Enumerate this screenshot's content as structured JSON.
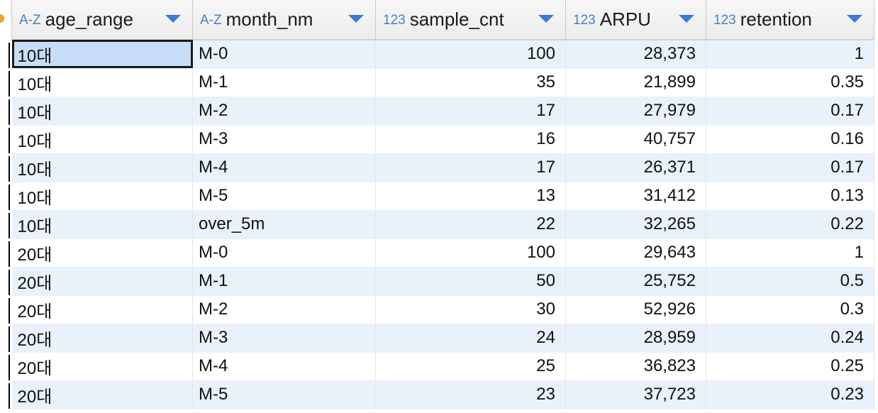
{
  "columns": [
    {
      "type_badge": "A-Z",
      "name": "age_range"
    },
    {
      "type_badge": "A-Z",
      "name": "month_nm"
    },
    {
      "type_badge": "123",
      "name": "sample_cnt"
    },
    {
      "type_badge": "123",
      "name": "ARPU"
    },
    {
      "type_badge": "123",
      "name": "retention"
    }
  ],
  "rows": [
    [
      "10대",
      "M-0",
      "100",
      "28,373",
      "1"
    ],
    [
      "10대",
      "M-1",
      "35",
      "21,899",
      "0.35"
    ],
    [
      "10대",
      "M-2",
      "17",
      "27,979",
      "0.17"
    ],
    [
      "10대",
      "M-3",
      "16",
      "40,757",
      "0.16"
    ],
    [
      "10대",
      "M-4",
      "17",
      "26,371",
      "0.17"
    ],
    [
      "10대",
      "M-5",
      "13",
      "31,412",
      "0.13"
    ],
    [
      "10대",
      "over_5m",
      "22",
      "32,265",
      "0.22"
    ],
    [
      "20대",
      "M-0",
      "100",
      "29,643",
      "1"
    ],
    [
      "20대",
      "M-1",
      "50",
      "25,752",
      "0.5"
    ],
    [
      "20대",
      "M-2",
      "30",
      "52,926",
      "0.3"
    ],
    [
      "20대",
      "M-3",
      "24",
      "28,959",
      "0.24"
    ],
    [
      "20대",
      "M-4",
      "25",
      "36,823",
      "0.25"
    ],
    [
      "20대",
      "M-5",
      "23",
      "37,723",
      "0.23"
    ]
  ],
  "colors": {
    "header_bg": "#ececec",
    "row_alt_bg": "#e9f1fb",
    "selected_cell_bg": "#c7ddf7",
    "sort_arrow": "#3a7bd5",
    "type_badge": "#4a7fc0"
  },
  "icons": {
    "sort": "sort-dropdown-triangle-icon",
    "row_marker": "orange-dot-icon"
  }
}
